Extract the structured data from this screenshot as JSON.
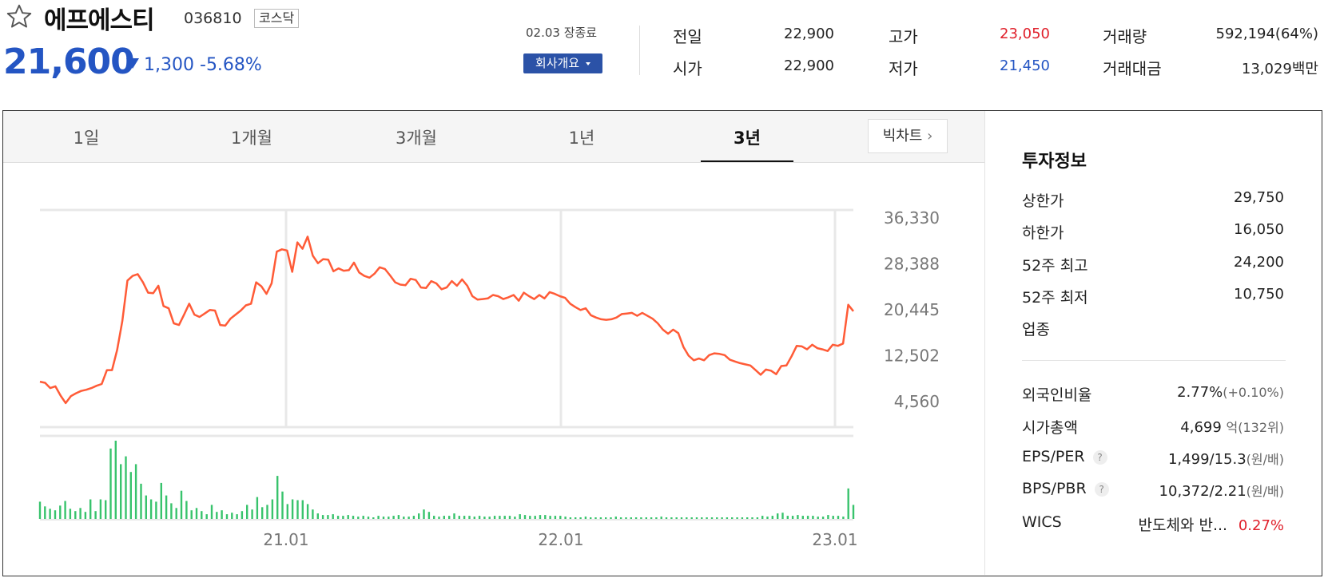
{
  "stock": {
    "name": "에프에스티",
    "code": "036810",
    "market": "코스닥",
    "price": "21,600",
    "change": "1,300",
    "change_pct": "-5.68%"
  },
  "trade_date": "02.03 장종료",
  "company_button": "회사개요",
  "summary": [
    {
      "label": "전일",
      "value": "22,900"
    },
    {
      "label": "시가",
      "value": "22,900"
    },
    {
      "label": "고가",
      "value": "23,050",
      "color": "#e0202b"
    },
    {
      "label": "저가",
      "value": "21,450",
      "color": "#2455c3"
    },
    {
      "label": "거래량",
      "value": "592,194(64%)"
    },
    {
      "label": "거래대금",
      "value": "13,029백만"
    }
  ],
  "tabs": [
    "1일",
    "1개월",
    "3개월",
    "1년",
    "3년"
  ],
  "active_tab": "3년",
  "big_chart": "빅차트",
  "invest": {
    "title": "투자정보",
    "rows": [
      {
        "label": "상한가",
        "value": "29,750"
      },
      {
        "label": "하한가",
        "value": "16,050"
      },
      {
        "label": "52주 최고",
        "value": "24,200"
      },
      {
        "label": "52주 최저",
        "value": "10,750"
      },
      {
        "label": "업종",
        "value": ""
      }
    ],
    "rows2": [
      {
        "label": "외국인비율",
        "value": "2.77%",
        "sub": "(+0.10%)"
      },
      {
        "label": "시가총액",
        "value": "4,699",
        "sub": "억(132위)"
      },
      {
        "label": "EPS/PER",
        "value": "1,499/15.3",
        "sub": "(원/배)"
      },
      {
        "label": "BPS/PBR",
        "value": "10,372/2.21",
        "sub": "(원/배)"
      },
      {
        "label": "WICS",
        "value": "반도체와 반...",
        "sub": "0.27%"
      }
    ]
  },
  "chart_data": {
    "type": "line",
    "y_ticks": [
      "36,330",
      "28,388",
      "20,445",
      "12,502",
      "4,560"
    ],
    "x_ticks": [
      "21.01",
      "22.01",
      "23.01"
    ],
    "ylim": [
      4560,
      36330
    ],
    "line_color": "#ff5b37",
    "volume_color": "#38c36c",
    "price": [
      8000,
      7800,
      6900,
      7200,
      5600,
      4300,
      5500,
      6000,
      6400,
      6600,
      6900,
      7300,
      7600,
      10000,
      10000,
      13500,
      18500,
      25500,
      26300,
      26600,
      25200,
      23400,
      23300,
      24600,
      21100,
      20700,
      18100,
      17800,
      19600,
      21500,
      19600,
      19200,
      19800,
      20400,
      20300,
      17800,
      17700,
      18900,
      19600,
      20300,
      21200,
      21500,
      25200,
      24500,
      23200,
      25000,
      30500,
      30900,
      30700,
      27000,
      32100,
      31000,
      33100,
      29800,
      28500,
      29200,
      29100,
      27100,
      27600,
      27200,
      27300,
      28600,
      26900,
      26300,
      26000,
      26700,
      27800,
      27500,
      26400,
      25200,
      24800,
      24700,
      25800,
      25600,
      24300,
      24200,
      25400,
      25000,
      24000,
      24300,
      25400,
      24600,
      25700,
      24600,
      22800,
      22200,
      22300,
      22400,
      23000,
      22800,
      22300,
      22600,
      23000,
      22000,
      23400,
      22800,
      22300,
      23000,
      22400,
      23500,
      23200,
      22800,
      22500,
      21500,
      20900,
      20400,
      20700,
      19500,
      19100,
      18800,
      18700,
      18800,
      19100,
      19700,
      19800,
      19900,
      19400,
      19900,
      19400,
      18900,
      18100,
      17000,
      16300,
      17000,
      16400,
      14000,
      12500,
      11700,
      12000,
      11700,
      12600,
      12900,
      12800,
      12600,
      11800,
      11500,
      11200,
      11000,
      10800,
      10000,
      9200,
      10100,
      9900,
      9300,
      10700,
      10800,
      12400,
      14200,
      14100,
      13600,
      14400,
      13800,
      13600,
      13300,
      14400,
      14200,
      14600,
      21300,
      20200
    ],
    "volume": [
      22,
      16,
      13,
      11,
      17,
      23,
      13,
      10,
      14,
      9,
      25,
      10,
      25,
      24,
      90,
      100,
      70,
      80,
      60,
      70,
      45,
      30,
      25,
      22,
      46,
      30,
      20,
      14,
      36,
      23,
      11,
      14,
      10,
      6,
      18,
      9,
      11,
      6,
      8,
      6,
      10,
      18,
      12,
      28,
      15,
      18,
      25,
      55,
      35,
      19,
      25,
      24,
      24,
      19,
      12,
      7,
      5,
      5,
      6,
      4,
      4,
      5,
      4,
      3,
      4,
      3,
      2,
      4,
      3,
      3,
      4,
      5,
      3,
      3,
      4,
      7,
      12,
      9,
      4,
      3,
      4,
      4,
      7,
      4,
      4,
      4,
      3,
      4,
      3,
      3,
      4,
      4,
      4,
      4,
      3,
      6,
      5,
      4,
      4,
      5,
      5,
      4,
      4,
      4,
      3,
      2,
      2,
      2,
      3,
      2,
      2,
      2,
      2,
      2,
      3,
      2,
      2,
      2,
      2,
      2,
      2,
      2,
      2,
      3,
      2,
      2,
      2,
      2,
      2,
      2,
      2,
      2,
      2,
      2,
      2,
      2,
      2,
      2,
      2,
      2,
      2,
      2,
      2,
      4,
      3,
      4,
      7,
      8,
      4,
      4,
      5,
      4,
      4,
      4,
      3,
      3,
      5,
      4,
      4,
      3,
      39,
      18
    ]
  }
}
